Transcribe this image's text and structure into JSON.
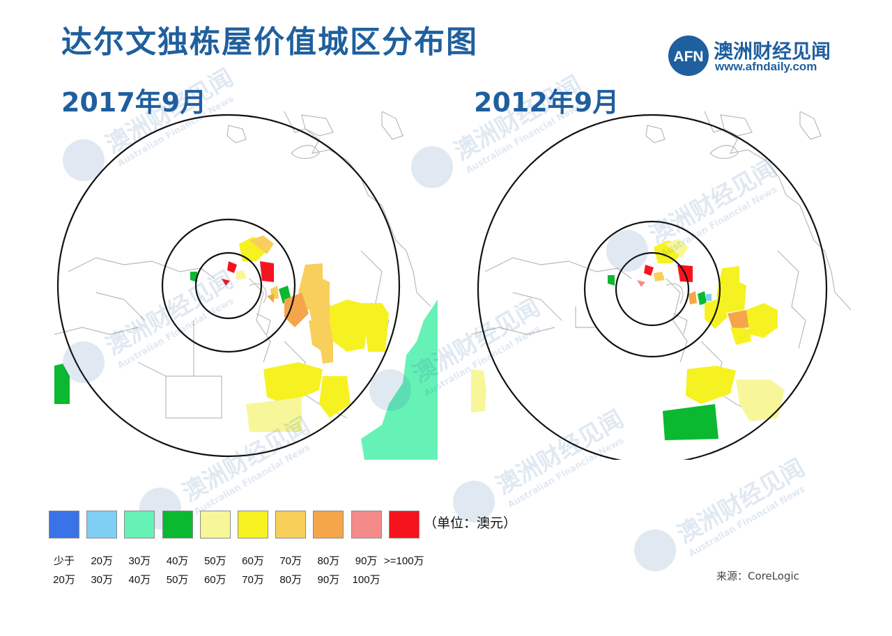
{
  "title": "达尔文独栋屋价值城区分布图",
  "brand": {
    "logo_text": "AFN",
    "name": "澳洲财经见闻",
    "url": "www.afndaily.com"
  },
  "maps": [
    {
      "date": "2017年9月"
    },
    {
      "date": "2012年9月"
    }
  ],
  "watermark": {
    "name": "澳洲财经见闻",
    "english": "Australian Financial News",
    "logo_text": "AFN"
  },
  "legend": {
    "unit": "（单位：澳元）",
    "items": [
      {
        "line1": "少于",
        "line2": "20万",
        "color": "#3a73e8"
      },
      {
        "line1": "20万",
        "line2": "30万",
        "color": "#7fcff5"
      },
      {
        "line1": "30万",
        "line2": "40万",
        "color": "#66f2b6"
      },
      {
        "line1": "40万",
        "line2": "50万",
        "color": "#0ab930"
      },
      {
        "line1": "50万",
        "line2": "60万",
        "color": "#f7f79a"
      },
      {
        "line1": "60万",
        "line2": "70万",
        "color": "#f6f221"
      },
      {
        "line1": "70万",
        "line2": "80万",
        "color": "#f7cf5a"
      },
      {
        "line1": "80万",
        "line2": "90万",
        "color": "#f5a64a"
      },
      {
        "line1": "90万",
        "line2": "100万",
        "color": "#f48b8b"
      },
      {
        "line1": ">=100万",
        "line2": "",
        "color": "#f5141e"
      }
    ]
  },
  "source": "来源：CoreLogic"
}
